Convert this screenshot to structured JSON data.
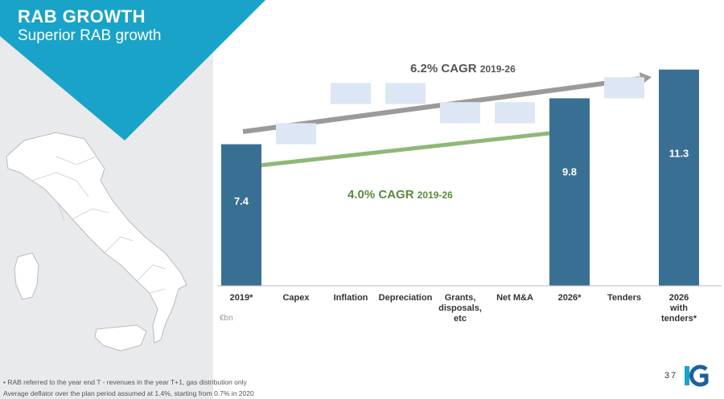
{
  "slide": {
    "title": "RAB GROWTH",
    "subtitle": "Superior RAB growth",
    "page_number": "37",
    "unit_label": "€bn",
    "footnotes": [
      "• RAB referred to the year end T - revenues  in the year T+1, gas distribution only",
      "Average deflator over the plan period assumed at 1.4%, starting from 0.7% in 2020"
    ],
    "logo_text": "IG"
  },
  "cagr": {
    "grey": {
      "rate": "6.2% CAGR",
      "period": "2019-26"
    },
    "green": {
      "rate": "4.0% CAGR",
      "period": "2019-26"
    }
  },
  "colors": {
    "banner": "#1aa3c8",
    "total_bar": "#3a6f94",
    "step_bar": "#dde6f5",
    "grey_arrow": "#9a9a9a",
    "green_arrow": "#8fb878"
  },
  "chart_data": {
    "type": "bar",
    "subtype": "waterfall",
    "categories": [
      "2019*",
      "Capex",
      "Inflation",
      "Depreciation",
      "Grants, disposals, etc",
      "Net M&A",
      "2026*",
      "Tenders",
      "2026 with tenders*"
    ],
    "category_lines": [
      [
        "2019*"
      ],
      [
        "Capex"
      ],
      [
        "Inflation"
      ],
      [
        "Depreciation"
      ],
      [
        "Grants,",
        "disposals,",
        "etc"
      ],
      [
        "Net M&A"
      ],
      [
        "2026*"
      ],
      [
        "Tenders"
      ],
      [
        "2026",
        "with",
        "tenders*"
      ]
    ],
    "bars": [
      {
        "kind": "total",
        "start": 0,
        "end": 7.4,
        "label": "7.4"
      },
      {
        "kind": "step",
        "start": 7.4,
        "end": 8.5
      },
      {
        "kind": "step",
        "start": 9.5,
        "end": 10.6
      },
      {
        "kind": "step",
        "start": 9.5,
        "end": 10.6
      },
      {
        "kind": "step",
        "start": 8.5,
        "end": 9.6
      },
      {
        "kind": "step",
        "start": 8.5,
        "end": 9.6
      },
      {
        "kind": "total",
        "start": 0,
        "end": 9.8,
        "label": "9.8"
      },
      {
        "kind": "step",
        "start": 9.8,
        "end": 10.9
      },
      {
        "kind": "total",
        "start": 0,
        "end": 11.3,
        "label": "11.3"
      }
    ],
    "ylim": [
      0,
      12
    ],
    "unit": "€bn",
    "grid": false,
    "legend": "none"
  }
}
